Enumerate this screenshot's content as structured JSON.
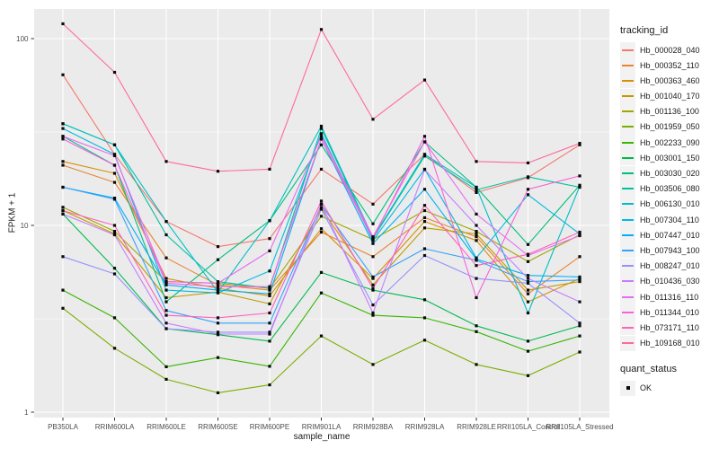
{
  "figure": {
    "background": "#FFFFFF",
    "panel_background": "#EBEBEB",
    "grid_color": "#FFFFFF",
    "axis_text_color": "#4D4D4D",
    "title_text_color": "#1A1A1A",
    "marker_color": "#0A0A0A",
    "legend_key_background": "#F2F2F2"
  },
  "chart_data": {
    "type": "line",
    "title": "",
    "xlabel": "sample_name",
    "ylabel": "FPKM + 1",
    "y_scale": "log10",
    "y_ticks": [
      1,
      10,
      100
    ],
    "y_minor_ticks": [
      3.162,
      31.623
    ],
    "ylim": [
      0.94,
      144
    ],
    "grid": true,
    "legend_position": "right",
    "marker_shape": "filled-square",
    "categories": [
      "PB350LA",
      "RRIM600LA",
      "RRIM600LE",
      "RRIM600SE",
      "RRIM600PE",
      "RRIM901LA",
      "RRIM928BA",
      "RRIM928LA",
      "RRIM928LE",
      "RRII105LA_Control",
      "RRII105LA_Stressed"
    ],
    "series": [
      {
        "name": "Hb_000028_040",
        "color": "#F8766D",
        "values": [
          64,
          24,
          10.5,
          7.7,
          8.5,
          20,
          13,
          24,
          15,
          18,
          27
        ]
      },
      {
        "name": "Hb_000352_110",
        "color": "#EA8331",
        "values": [
          21,
          17,
          6.7,
          4.8,
          4.5,
          9.2,
          6.8,
          11,
          8.7,
          4.3,
          6.8
        ]
      },
      {
        "name": "Hb_000363_460",
        "color": "#D89000",
        "values": [
          22,
          19,
          5.2,
          4.6,
          4.2,
          9.6,
          5.2,
          10.5,
          8.3,
          3.9,
          5.2
        ]
      },
      {
        "name": "Hb_001040_170",
        "color": "#C09B00",
        "values": [
          12,
          9,
          4.1,
          4.4,
          3.8,
          12.4,
          4.8,
          9.7,
          9,
          4.5,
          5
        ]
      },
      {
        "name": "Hb_001136_100",
        "color": "#A3A500",
        "values": [
          12.5,
          9.3,
          5,
          4.9,
          4.6,
          11.2,
          8.4,
          12,
          9.3,
          6.4,
          8.9
        ]
      },
      {
        "name": "Hb_001959_050",
        "color": "#7CAE00",
        "values": [
          3.6,
          2.2,
          1.5,
          1.27,
          1.4,
          2.56,
          1.8,
          2.43,
          1.8,
          1.57,
          2.1
        ]
      },
      {
        "name": "Hb_002233_090",
        "color": "#39B600",
        "values": [
          4.5,
          3.2,
          1.75,
          1.96,
          1.76,
          4.35,
          3.3,
          3.2,
          2.7,
          2.12,
          2.56
        ]
      },
      {
        "name": "Hb_003001_150",
        "color": "#00BB4E",
        "values": [
          11.5,
          5.9,
          2.8,
          2.6,
          2.4,
          5.6,
          4.5,
          4,
          2.9,
          2.4,
          2.9
        ]
      },
      {
        "name": "Hb_003030_020",
        "color": "#00BF7D",
        "values": [
          30,
          21,
          3.9,
          6.55,
          10.6,
          27,
          10.2,
          28,
          16,
          7.9,
          16.4
        ]
      },
      {
        "name": "Hb_003506_080",
        "color": "#00C1A3",
        "values": [
          35,
          27,
          8.9,
          5,
          4.6,
          33,
          8.5,
          23.5,
          15.5,
          18.2,
          16
        ]
      },
      {
        "name": "Hb_006130_010",
        "color": "#00BFC4",
        "values": [
          35,
          27,
          10.5,
          4.4,
          10.6,
          34,
          8.6,
          24,
          16,
          3.4,
          16.2
        ]
      },
      {
        "name": "Hb_007304_110",
        "color": "#00BAE0",
        "values": [
          33,
          24,
          4.5,
          4.35,
          5.7,
          31,
          8.3,
          20,
          6.7,
          14.6,
          9
        ]
      },
      {
        "name": "Hb_007447_010",
        "color": "#00B0F6",
        "values": [
          16,
          14,
          4.8,
          4.5,
          4.3,
          29,
          8,
          15.6,
          6.6,
          5.4,
          5.3
        ]
      },
      {
        "name": "Hb_007943_100",
        "color": "#35A2FF",
        "values": [
          16,
          13.8,
          3.5,
          3,
          3,
          12.9,
          5.3,
          7.5,
          6.5,
          5,
          5.1
        ]
      },
      {
        "name": "Hb_008247_010",
        "color": "#9590FF",
        "values": [
          6.8,
          5.5,
          2.8,
          2.68,
          2.68,
          12.2,
          3.75,
          6.9,
          5.2,
          4.9,
          3
        ]
      },
      {
        "name": "Hb_010436_030",
        "color": "#C77CFF",
        "values": [
          11.5,
          8.9,
          3,
          2.62,
          2.62,
          13,
          3.4,
          19.9,
          10,
          5.2,
          3.9
        ]
      },
      {
        "name": "Hb_011316_110",
        "color": "#E76BF3",
        "values": [
          30,
          23.6,
          5,
          4.9,
          7.3,
          30,
          8.7,
          28,
          11.5,
          6.9,
          8.8
        ]
      },
      {
        "name": "Hb_011344_010",
        "color": "#FA62DB",
        "values": [
          29,
          21,
          4.9,
          4.7,
          4.7,
          29,
          8.5,
          30,
          4.1,
          15.6,
          18.4
        ]
      },
      {
        "name": "Hb_073171_110",
        "color": "#FF62BC",
        "values": [
          12,
          10,
          3.3,
          3.2,
          3.4,
          13.5,
          4.6,
          12.8,
          6.1,
          7,
          9.2
        ]
      },
      {
        "name": "Hb_109168_010",
        "color": "#FF6A98",
        "values": [
          120,
          66,
          22,
          19.5,
          20,
          112,
          37,
          60,
          22,
          21.6,
          27.5
        ]
      }
    ],
    "legend": {
      "color_title": "tracking_id",
      "shape_title": "quant_status",
      "shape_items": [
        {
          "label": "OK"
        }
      ]
    }
  }
}
